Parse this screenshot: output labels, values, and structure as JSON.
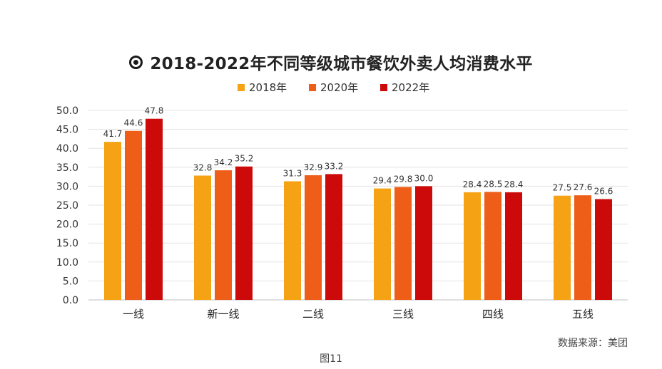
{
  "title": "2018-2022年不同等级城市餐饮外卖人均消费水平",
  "source": "数据来源：美团",
  "caption": "图11",
  "colors": {
    "series": [
      "#F5A214",
      "#EE5E19",
      "#CC0A0A"
    ],
    "grid": "#e3e3e3",
    "text": "#333333"
  },
  "chart_data": {
    "type": "bar",
    "title": "2018-2022年不同等级城市餐饮外卖人均消费水平",
    "categories": [
      "一线",
      "新一线",
      "二线",
      "三线",
      "四线",
      "五线"
    ],
    "series": [
      {
        "name": "2018年",
        "values": [
          41.7,
          32.8,
          31.3,
          29.4,
          28.4,
          27.5
        ]
      },
      {
        "name": "2020年",
        "values": [
          44.6,
          34.2,
          32.9,
          29.8,
          28.5,
          27.6
        ]
      },
      {
        "name": "2022年",
        "values": [
          47.8,
          35.2,
          33.2,
          30.0,
          28.4,
          26.6
        ]
      }
    ],
    "ylim": [
      0,
      50
    ],
    "yticks": [
      "0.0",
      "5.0",
      "10.0",
      "15.0",
      "20.0",
      "25.0",
      "30.0",
      "35.0",
      "40.0",
      "45.0",
      "50.0"
    ],
    "grid": true,
    "legend_position": "top-center",
    "xlabel": "",
    "ylabel": ""
  }
}
